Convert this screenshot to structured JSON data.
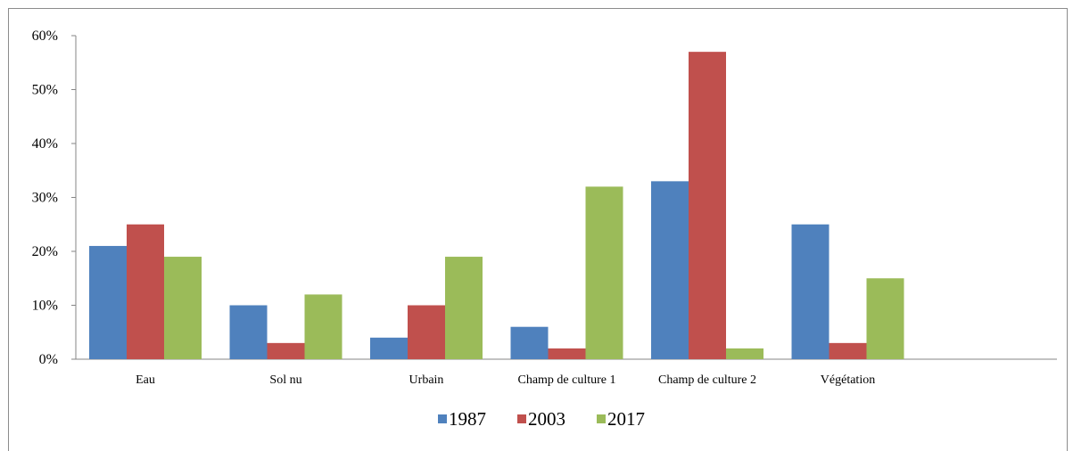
{
  "chart_data": {
    "type": "bar",
    "categories": [
      "Eau",
      "Sol nu",
      "Urbain",
      "Champ de culture 1",
      "Champ de culture 2",
      "Végétation"
    ],
    "series": [
      {
        "name": "1987",
        "color": "#4f81bd",
        "values": [
          21,
          10,
          4,
          6,
          33,
          25
        ]
      },
      {
        "name": "2003",
        "color": "#c0504d",
        "values": [
          25,
          3,
          10,
          2,
          57,
          3
        ]
      },
      {
        "name": "2017",
        "color": "#9bbb59",
        "values": [
          19,
          12,
          19,
          32,
          2,
          15
        ]
      }
    ],
    "ylim": [
      0,
      60
    ],
    "yticks": [
      "0%",
      "10%",
      "20%",
      "30%",
      "40%",
      "50%",
      "60%"
    ],
    "grid": false,
    "legend_position": "bottom"
  }
}
